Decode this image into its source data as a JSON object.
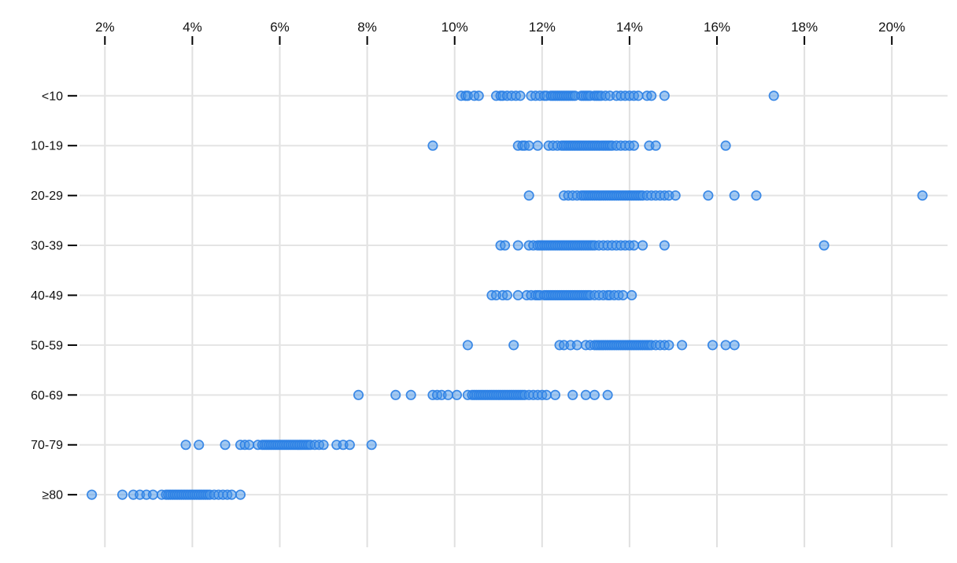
{
  "chart_data": {
    "type": "scatter",
    "variant": "strip-dot-plot",
    "title": "",
    "xlabel": "",
    "ylabel": "",
    "grid": true,
    "legend_position": "none",
    "x_axis": {
      "unit": "%",
      "range": [
        1.4,
        21.4
      ],
      "tick_values": [
        2,
        4,
        6,
        8,
        10,
        12,
        14,
        16,
        18,
        20
      ],
      "tick_labels": [
        "2%",
        "4%",
        "6%",
        "8%",
        "10%",
        "12%",
        "14%",
        "16%",
        "18%",
        "20%"
      ]
    },
    "y_axis": {
      "categories": [
        "<10",
        "10-19",
        "20-29",
        "30-39",
        "40-49",
        "50-59",
        "60-69",
        "70-79",
        "≥80"
      ]
    },
    "colors": {
      "point_fill": "#4593e8",
      "point_stroke": "#2b7fe4",
      "gridline_vertical": "#e0e0e0",
      "gridline_horizontal": "#e4e4e4",
      "tick_mark": "#000000",
      "label_text": "#111111",
      "background": "#ffffff"
    },
    "series": [
      {
        "category": "<10",
        "values": [
          10.15,
          10.25,
          10.3,
          10.45,
          10.55,
          10.95,
          11.05,
          11.1,
          11.2,
          11.3,
          11.4,
          11.5,
          11.75,
          11.85,
          11.95,
          12.05,
          12.1,
          12.2,
          12.25,
          12.3,
          12.35,
          12.4,
          12.45,
          12.5,
          12.55,
          12.6,
          12.65,
          12.7,
          12.75,
          12.9,
          12.95,
          13.0,
          13.05,
          13.1,
          13.2,
          13.25,
          13.3,
          13.35,
          13.45,
          13.55,
          13.7,
          13.8,
          13.9,
          14.0,
          14.1,
          14.2,
          14.4,
          14.5,
          14.8,
          17.3
        ]
      },
      {
        "category": "10-19",
        "values": [
          9.5,
          11.45,
          11.55,
          11.6,
          11.7,
          11.9,
          12.15,
          12.25,
          12.35,
          12.45,
          12.5,
          12.55,
          12.6,
          12.65,
          12.7,
          12.75,
          12.8,
          12.85,
          12.9,
          12.95,
          13.0,
          13.05,
          13.1,
          13.15,
          13.2,
          13.25,
          13.3,
          13.35,
          13.4,
          13.45,
          13.5,
          13.55,
          13.6,
          13.7,
          13.8,
          13.9,
          14.0,
          14.1,
          14.45,
          14.6,
          16.2
        ]
      },
      {
        "category": "20-29",
        "values": [
          11.7,
          12.5,
          12.6,
          12.7,
          12.8,
          12.9,
          12.95,
          13.0,
          13.05,
          13.1,
          13.15,
          13.2,
          13.25,
          13.3,
          13.35,
          13.4,
          13.45,
          13.5,
          13.55,
          13.6,
          13.65,
          13.7,
          13.75,
          13.8,
          13.85,
          13.9,
          13.95,
          14.0,
          14.05,
          14.1,
          14.15,
          14.2,
          14.25,
          14.3,
          14.4,
          14.5,
          14.6,
          14.7,
          14.8,
          14.9,
          15.05,
          15.8,
          16.4,
          16.9,
          20.7
        ]
      },
      {
        "category": "30-39",
        "values": [
          11.05,
          11.15,
          11.45,
          11.7,
          11.8,
          11.9,
          11.95,
          12.0,
          12.05,
          12.1,
          12.15,
          12.2,
          12.25,
          12.3,
          12.35,
          12.4,
          12.45,
          12.5,
          12.55,
          12.6,
          12.65,
          12.7,
          12.75,
          12.8,
          12.85,
          12.9,
          12.95,
          13.0,
          13.05,
          13.1,
          13.15,
          13.2,
          13.3,
          13.4,
          13.5,
          13.6,
          13.7,
          13.8,
          13.9,
          14.0,
          14.1,
          14.3,
          14.8,
          18.45
        ]
      },
      {
        "category": "40-49",
        "values": [
          10.85,
          10.95,
          11.1,
          11.2,
          11.45,
          11.65,
          11.75,
          11.85,
          11.9,
          11.95,
          12.05,
          12.1,
          12.15,
          12.2,
          12.25,
          12.3,
          12.35,
          12.4,
          12.45,
          12.5,
          12.55,
          12.6,
          12.65,
          12.7,
          12.75,
          12.8,
          12.85,
          12.9,
          12.95,
          13.0,
          13.05,
          13.1,
          13.2,
          13.3,
          13.4,
          13.5,
          13.55,
          13.65,
          13.75,
          13.85,
          14.05
        ]
      },
      {
        "category": "50-59",
        "values": [
          10.3,
          11.35,
          12.4,
          12.5,
          12.65,
          12.8,
          13.0,
          13.1,
          13.2,
          13.25,
          13.3,
          13.35,
          13.4,
          13.45,
          13.5,
          13.55,
          13.6,
          13.65,
          13.7,
          13.75,
          13.8,
          13.85,
          13.9,
          13.95,
          14.0,
          14.05,
          14.1,
          14.15,
          14.2,
          14.25,
          14.3,
          14.35,
          14.4,
          14.45,
          14.5,
          14.6,
          14.7,
          14.8,
          14.9,
          15.2,
          15.9,
          16.2,
          16.4
        ]
      },
      {
        "category": "60-69",
        "values": [
          7.8,
          8.65,
          9.0,
          9.5,
          9.6,
          9.7,
          9.85,
          10.05,
          10.3,
          10.4,
          10.45,
          10.5,
          10.55,
          10.6,
          10.65,
          10.7,
          10.75,
          10.8,
          10.85,
          10.9,
          10.95,
          11.0,
          11.05,
          11.1,
          11.15,
          11.2,
          11.25,
          11.3,
          11.35,
          11.4,
          11.45,
          11.5,
          11.55,
          11.6,
          11.7,
          11.8,
          11.9,
          12.0,
          12.1,
          12.3,
          12.7,
          13.0,
          13.2,
          13.5
        ]
      },
      {
        "category": "70-79",
        "values": [
          3.85,
          4.15,
          4.75,
          5.1,
          5.2,
          5.3,
          5.5,
          5.6,
          5.65,
          5.7,
          5.75,
          5.8,
          5.85,
          5.9,
          5.95,
          6.0,
          6.05,
          6.1,
          6.15,
          6.2,
          6.25,
          6.3,
          6.35,
          6.4,
          6.45,
          6.5,
          6.55,
          6.6,
          6.65,
          6.7,
          6.8,
          6.9,
          7.0,
          7.3,
          7.45,
          7.6,
          8.1
        ]
      },
      {
        "category": "≥80",
        "values": [
          1.7,
          2.4,
          2.65,
          2.8,
          2.95,
          3.1,
          3.3,
          3.4,
          3.45,
          3.5,
          3.55,
          3.6,
          3.65,
          3.7,
          3.75,
          3.8,
          3.85,
          3.9,
          3.95,
          4.0,
          4.05,
          4.1,
          4.15,
          4.2,
          4.25,
          4.3,
          4.35,
          4.4,
          4.5,
          4.6,
          4.7,
          4.8,
          4.9,
          5.1
        ]
      }
    ]
  }
}
